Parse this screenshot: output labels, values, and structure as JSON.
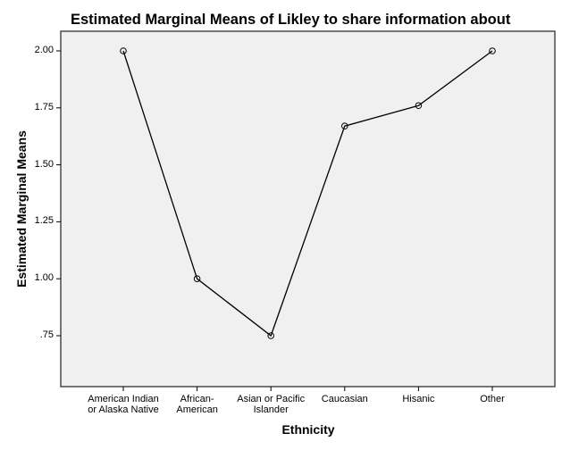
{
  "chart_data": {
    "type": "line",
    "title": "Estimated Marginal Means of Likley to share information about",
    "xlabel": "Ethnicity",
    "ylabel": "Estimated Marginal Means",
    "categories": [
      "American Indian\nor Alaska Native",
      "African-\nAmerican",
      "Asian or Pacific\nIslander",
      "Caucasian",
      "Hisanic",
      "Other"
    ],
    "values": [
      2.0,
      1.0,
      0.75,
      1.67,
      1.76,
      2.0
    ],
    "yticks": [
      "2.00",
      "1.75",
      "1.50",
      "1.25",
      "1.00",
      ".75"
    ],
    "ytick_values": [
      2.0,
      1.75,
      1.5,
      1.25,
      1.0,
      0.75
    ],
    "ylim": [
      0.53,
      2.09
    ],
    "grid": false,
    "legend": null,
    "marker": "open-circle",
    "colors": {
      "plot_background": "#F0F0F0",
      "line": "#000000",
      "frame": "#4a4a4a"
    }
  }
}
